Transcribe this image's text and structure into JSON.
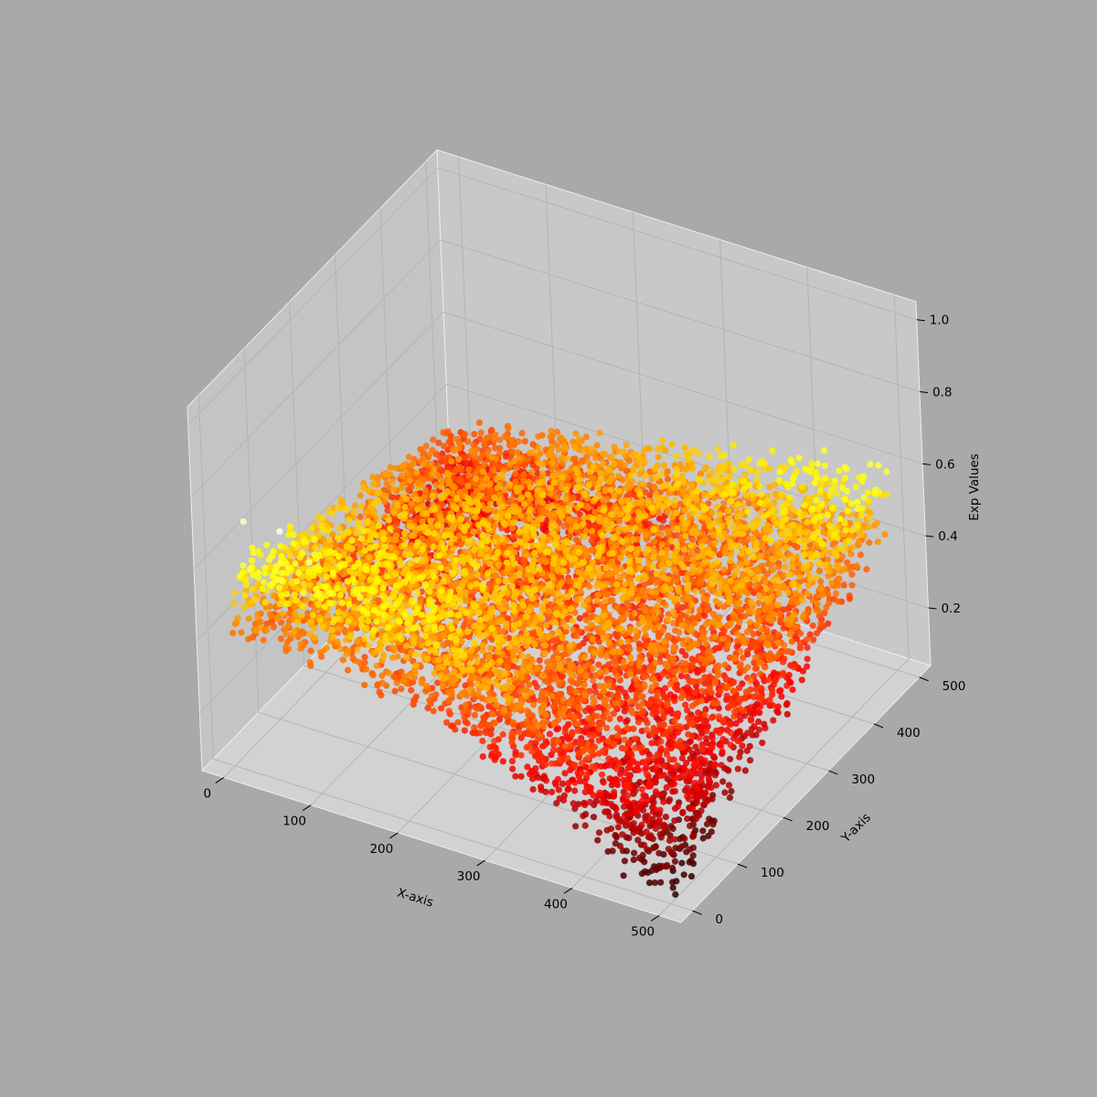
{
  "chart_data": {
    "type": "scatter",
    "projection": "3d",
    "title": "",
    "xlabel": "X-axis",
    "ylabel": "Y-axis",
    "zlabel": "Exp Values",
    "x_ticks": [
      0,
      100,
      200,
      300,
      400,
      500
    ],
    "y_ticks": [
      0,
      100,
      200,
      300,
      400,
      500
    ],
    "z_ticks": [
      "0.2",
      "0.4",
      "0.6",
      "0.8",
      "1.0"
    ],
    "xlim": [
      -25,
      525
    ],
    "ylim": [
      -25,
      525
    ],
    "zlim": [
      0.04,
      1.05
    ],
    "grid": true,
    "legend": "none",
    "colormap": "hot",
    "color_by": "z",
    "point_count_estimate": 10000,
    "description_of_values": "z is largest (about 0.5) near x=0, y=0 and near x=500, y=500, with a valley of low values (about 0.05-0.15) toward x=500, y=0 and spread upward by noise; a few high outliers near x=0-100, y=0 reach 0.7",
    "outliers": [
      {
        "x": 10,
        "y": 20,
        "z": 0.7
      },
      {
        "x": 60,
        "y": 5,
        "z": 0.73
      },
      {
        "x": 90,
        "y": 10,
        "z": 0.66
      },
      {
        "x": 40,
        "y": 40,
        "z": 0.58
      },
      {
        "x": 20,
        "y": 60,
        "z": 0.56
      },
      {
        "x": 100,
        "y": 30,
        "z": 0.53
      },
      {
        "x": 70,
        "y": 55,
        "z": 0.55
      },
      {
        "x": 130,
        "y": 15,
        "z": 0.52
      }
    ],
    "samples": [
      {
        "x": 0,
        "y": 0,
        "z": 0.5
      },
      {
        "x": 0,
        "y": 250,
        "z": 0.3
      },
      {
        "x": 0,
        "y": 500,
        "z": 0.32
      },
      {
        "x": 250,
        "y": 0,
        "z": 0.22
      },
      {
        "x": 250,
        "y": 250,
        "z": 0.25
      },
      {
        "x": 250,
        "y": 500,
        "z": 0.42
      },
      {
        "x": 500,
        "y": 0,
        "z": 0.1
      },
      {
        "x": 500,
        "y": 250,
        "z": 0.28
      },
      {
        "x": 500,
        "y": 500,
        "z": 0.53
      }
    ]
  },
  "colors": {
    "figure_background": "#a9a9a9",
    "pane_background": "#c8c8c8",
    "gridline": "#b4b4b4"
  }
}
